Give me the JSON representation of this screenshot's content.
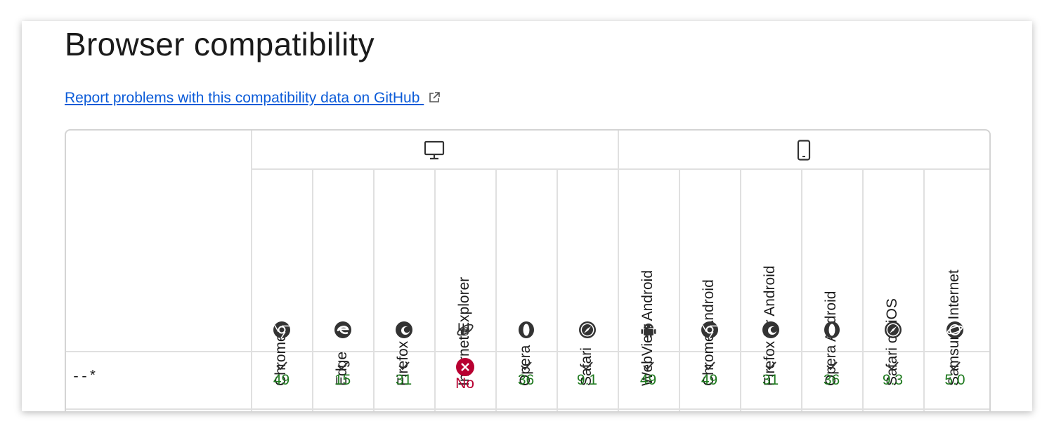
{
  "page": {
    "title": "Browser compatibility",
    "report_link": "Report problems with this compatibility data on GitHub"
  },
  "table": {
    "platforms": [
      {
        "name": "desktop",
        "icon": "desktop-icon"
      },
      {
        "name": "mobile",
        "icon": "mobile-icon"
      }
    ],
    "browsers": [
      {
        "name": "Chrome",
        "icon": "chrome-icon"
      },
      {
        "name": "Edge",
        "icon": "edge-icon"
      },
      {
        "name": "Firefox",
        "icon": "firefox-icon"
      },
      {
        "name": "Internet Explorer",
        "icon": "internet-explorer-icon"
      },
      {
        "name": "Opera",
        "icon": "opera-icon"
      },
      {
        "name": "Safari",
        "icon": "safari-icon"
      },
      {
        "name": "WebView Android",
        "icon": "android-icon"
      },
      {
        "name": "Chrome Android",
        "icon": "chrome-icon"
      },
      {
        "name": "Firefox for Android",
        "icon": "firefox-icon"
      },
      {
        "name": "Opera Android",
        "icon": "opera-icon"
      },
      {
        "name": "Safari on iOS",
        "icon": "safari-icon"
      },
      {
        "name": "Samsung Internet",
        "icon": "samsung-internet-icon"
      }
    ],
    "rows": [
      {
        "feature": "--*",
        "support": [
          {
            "supported": true,
            "version": "49"
          },
          {
            "supported": true,
            "version": "15"
          },
          {
            "supported": true,
            "version": "31"
          },
          {
            "supported": false,
            "version": "No"
          },
          {
            "supported": true,
            "version": "36"
          },
          {
            "supported": true,
            "version": "9.1"
          },
          {
            "supported": true,
            "version": "49"
          },
          {
            "supported": true,
            "version": "49"
          },
          {
            "supported": true,
            "version": "31"
          },
          {
            "supported": true,
            "version": "36"
          },
          {
            "supported": true,
            "version": "9.3"
          },
          {
            "supported": true,
            "version": "5.0"
          }
        ]
      }
    ]
  },
  "colors": {
    "link": "#0b5bd8",
    "supported": "#1f7a1f",
    "unsupported": "#b80031"
  }
}
